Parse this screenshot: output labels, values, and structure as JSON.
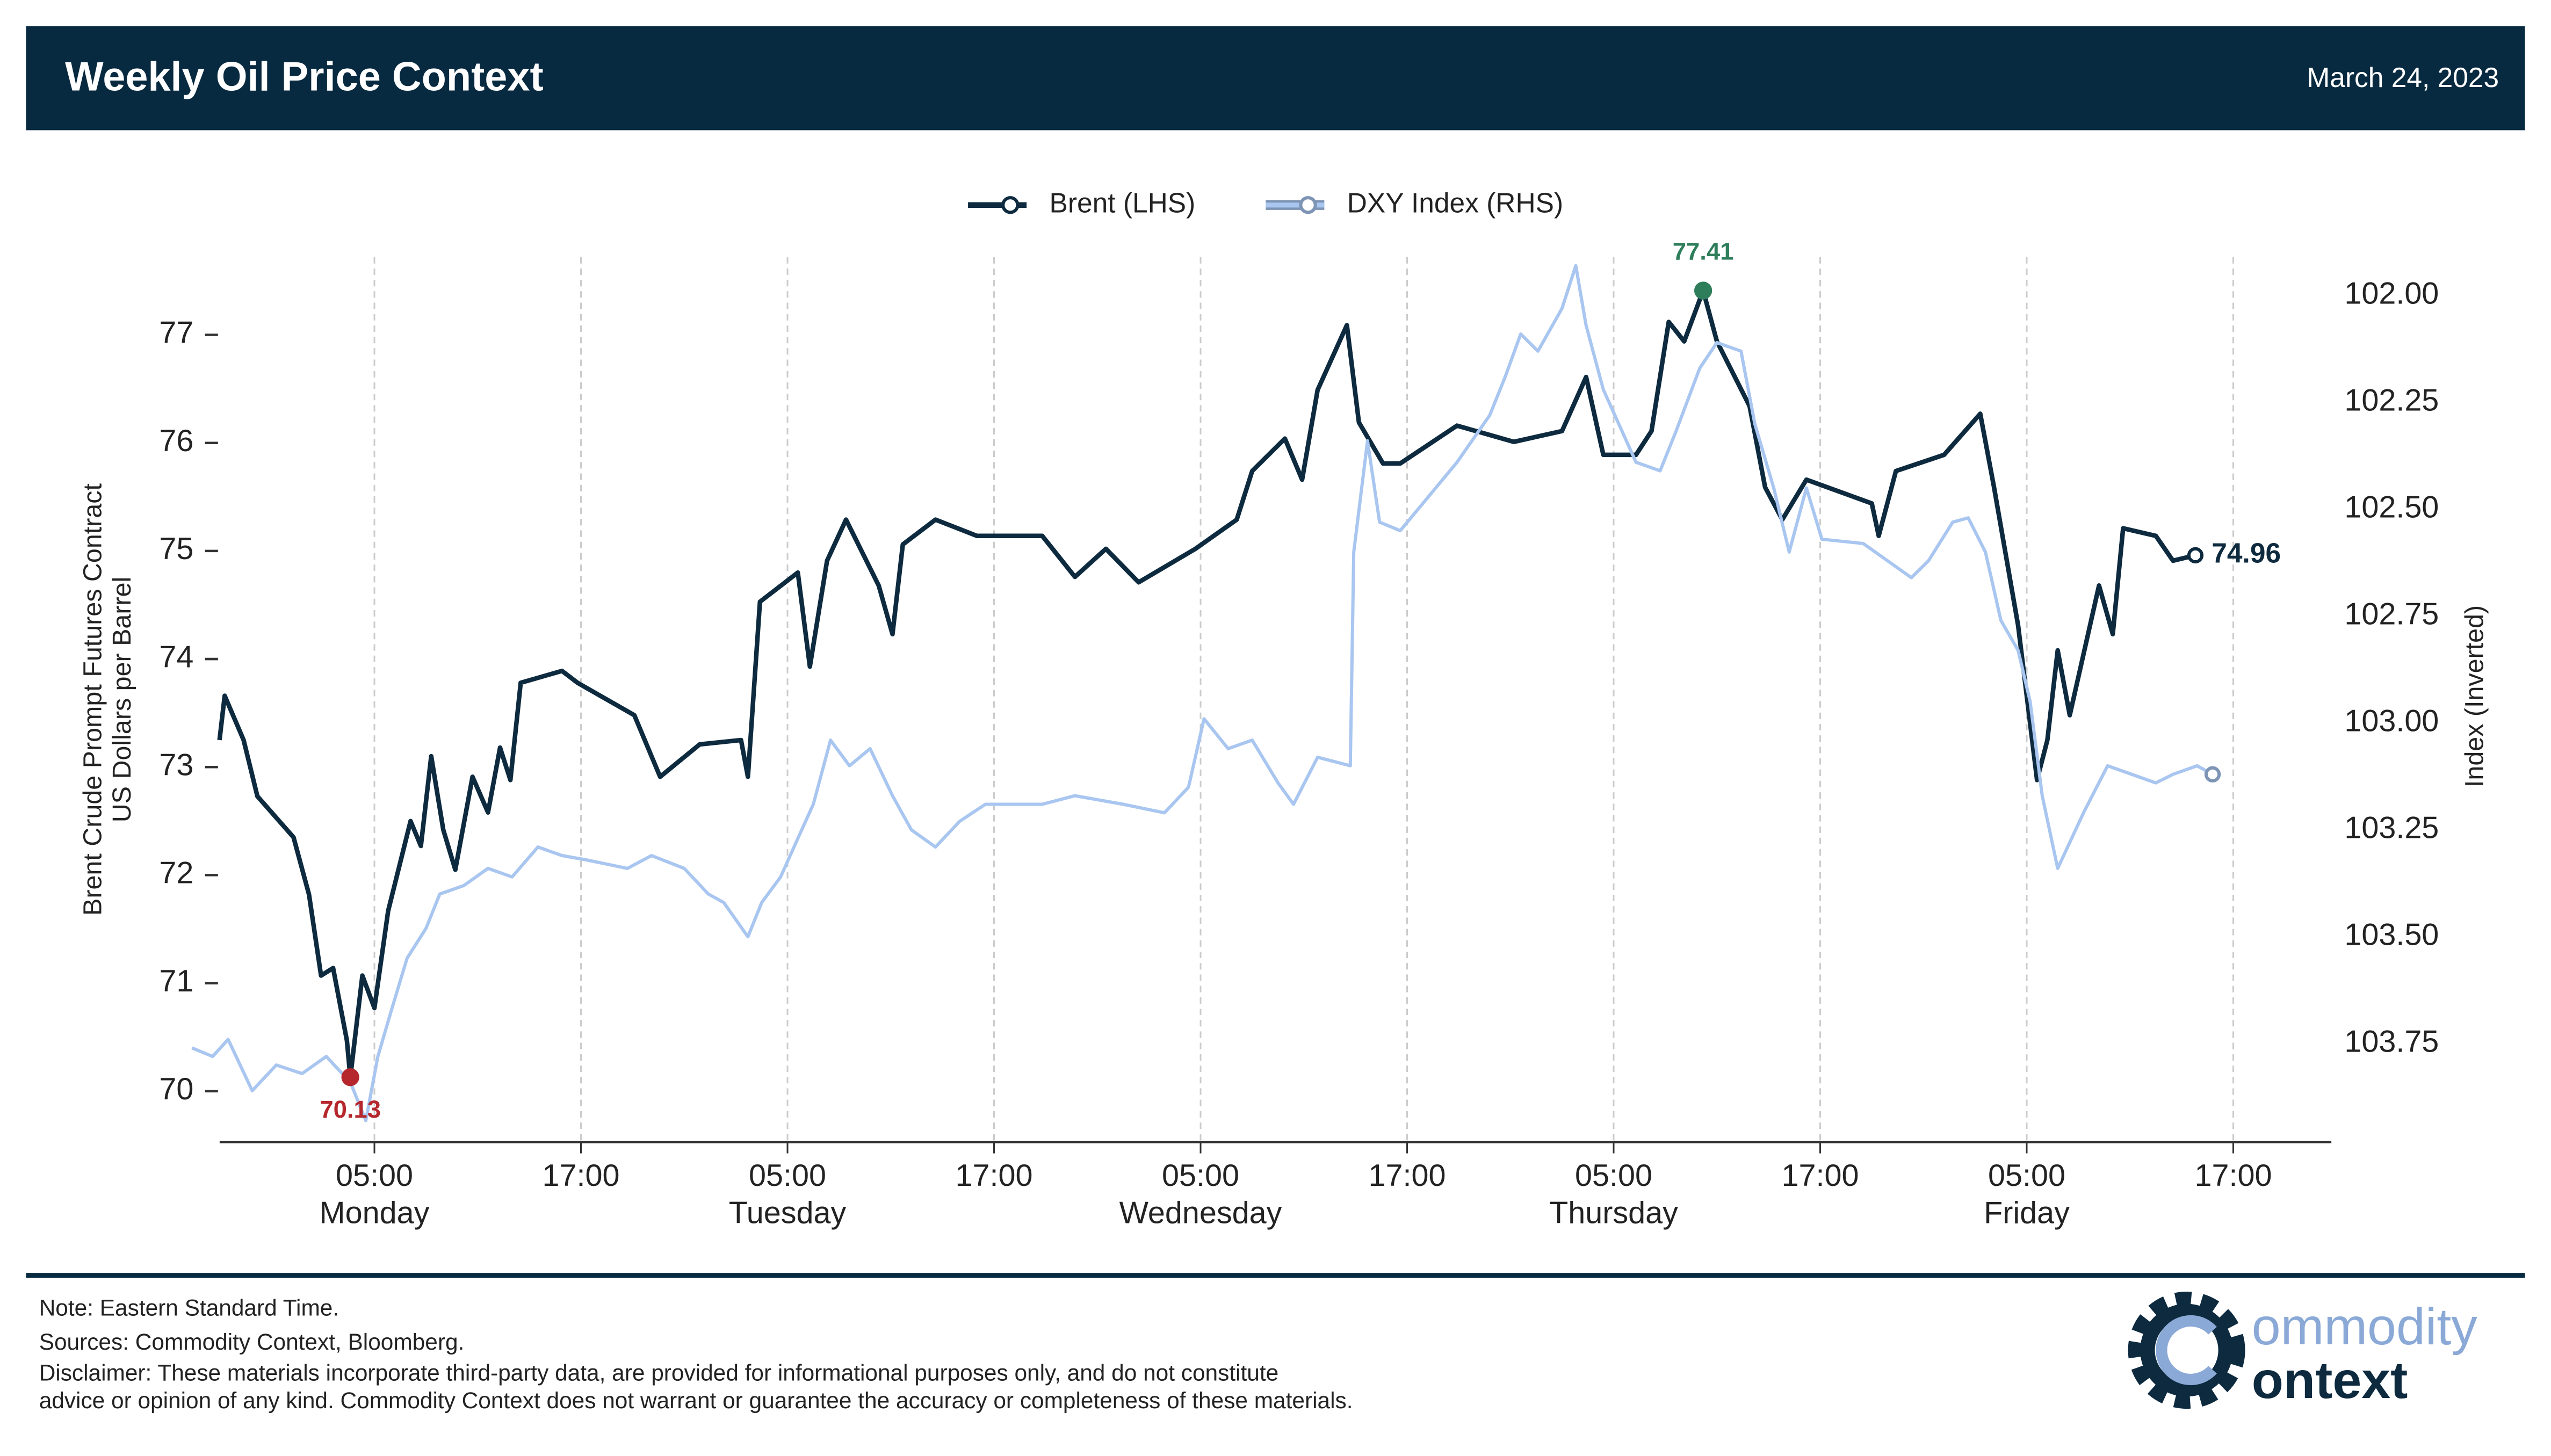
{
  "header": {
    "title": "Weekly Oil Price Context",
    "date": "March 24, 2023"
  },
  "chart_data": {
    "type": "line",
    "ylabel": [
      "Brent Crude Prompt Futures Contract",
      "US Dollars per Barrel"
    ],
    "y2label": "Index (Inverted)",
    "xlim": [
      -5.6,
      118.7
    ],
    "xticks": [
      {
        "value": 5,
        "label": "05:00\nMonday"
      },
      {
        "value": 17,
        "label": "17:00"
      },
      {
        "value": 29,
        "label": "05:00\nTuesday"
      },
      {
        "value": 41,
        "label": "17:00"
      },
      {
        "value": 53,
        "label": "05:00\nWednesday"
      },
      {
        "value": 65,
        "label": "17:00"
      },
      {
        "value": 77,
        "label": "05:00\nThursday"
      },
      {
        "value": 89,
        "label": "17:00"
      },
      {
        "value": 101,
        "label": "05:00\nFriday"
      },
      {
        "value": 113,
        "label": "17:00"
      }
    ],
    "xgrid": true,
    "ylim": [
      69.53,
      77.72
    ],
    "yticks": [
      70,
      71,
      72,
      73,
      74,
      75,
      76,
      77
    ],
    "y2lim": [
      103.98,
      101.91
    ],
    "y2ticks": [
      {
        "value": 102,
        "label": "102.00"
      },
      102.25,
      {
        "value": 102.5,
        "label": "102.50"
      },
      102.75,
      {
        "value": 103,
        "label": "103.00"
      },
      103.25,
      {
        "value": 103.5,
        "label": "103.50"
      },
      103.75
    ],
    "legend": "top",
    "series": [
      {
        "name": "Brent (LHS)",
        "color": "#0d2a3f",
        "axis": "y",
        "end_label": true,
        "x": [
          -4.0,
          -3.7,
          -2.6,
          -1.8,
          0.3,
          1.2,
          1.9,
          2.6,
          3.4,
          3.6,
          4.3,
          5.0,
          5.8,
          7.1,
          7.7,
          8.3,
          9.0,
          9.7,
          10.7,
          11.6,
          12.3,
          12.9,
          13.5,
          15.9,
          16.8,
          20.1,
          21.6,
          23.9,
          26.3,
          26.7,
          27.4,
          29.6,
          30.3,
          31.3,
          32.4,
          34.3,
          35.1,
          35.7,
          37.6,
          40.0,
          43.8,
          45.7,
          47.5,
          49.4,
          52.7,
          55.1,
          56.0,
          57.9,
          58.9,
          59.8,
          61.5,
          62.2,
          63.6,
          64.6,
          67.9,
          71.2,
          74.0,
          75.4,
          76.4,
          78.3,
          79.2,
          80.2,
          81.1,
          82.2,
          83.0,
          84.9,
          85.8,
          86.8,
          88.2,
          92.0,
          92.4,
          93.4,
          96.2,
          98.3,
          99.1,
          100.5,
          101.6,
          102.2,
          102.8,
          103.5,
          105.2,
          106.0,
          106.6,
          108.5,
          109.5,
          110.8
        ],
        "values": [
          73.25,
          73.66,
          73.25,
          72.73,
          72.35,
          71.82,
          71.07,
          71.14,
          70.47,
          70.13,
          71.07,
          70.77,
          71.67,
          72.5,
          72.27,
          73.1,
          72.42,
          72.05,
          72.91,
          72.58,
          73.18,
          72.88,
          73.78,
          73.89,
          73.78,
          73.48,
          72.91,
          73.21,
          73.25,
          72.91,
          74.53,
          74.8,
          73.93,
          74.91,
          75.29,
          74.68,
          74.23,
          75.06,
          75.29,
          75.14,
          75.14,
          74.76,
          75.02,
          74.71,
          75.02,
          75.29,
          75.74,
          76.04,
          75.66,
          76.49,
          77.09,
          76.19,
          75.81,
          75.81,
          76.16,
          76.01,
          76.11,
          76.61,
          75.89,
          75.89,
          76.11,
          77.12,
          76.94,
          77.41,
          76.94,
          76.34,
          75.59,
          75.29,
          75.66,
          75.44,
          75.14,
          75.74,
          75.89,
          76.27,
          75.59,
          74.31,
          72.88,
          73.25,
          74.08,
          73.48,
          74.68,
          74.23,
          75.21,
          75.14,
          74.91,
          74.96
        ]
      },
      {
        "name": "DXY Index (RHS)",
        "color": "#a9c6f0",
        "axis": "y2",
        "end_marker": true,
        "x": [
          -5.6,
          -4.4,
          -3.5,
          -2.1,
          -0.7,
          0.8,
          2.2,
          3.6,
          4.5,
          5.2,
          6.0,
          6.9,
          8.0,
          8.8,
          10.2,
          11.6,
          13.0,
          14.5,
          15.9,
          17.3,
          19.7,
          21.1,
          23.0,
          24.4,
          25.3,
          26.7,
          27.5,
          28.6,
          29.6,
          30.5,
          31.5,
          32.6,
          33.8,
          35.1,
          36.2,
          37.6,
          39.0,
          40.5,
          43.8,
          45.7,
          48.5,
          50.9,
          52.3,
          53.2,
          54.6,
          56.0,
          57.5,
          58.4,
          59.8,
          61.7,
          61.9,
          62.7,
          63.4,
          64.6,
          67.9,
          69.8,
          70.7,
          71.6,
          72.6,
          74.0,
          74.8,
          75.4,
          76.4,
          78.3,
          79.7,
          80.6,
          82.0,
          83.0,
          84.4,
          85.2,
          86.3,
          87.2,
          88.2,
          89.1,
          91.5,
          92.9,
          94.3,
          95.3,
          96.7,
          97.6,
          98.6,
          99.5,
          100.5,
          101.2,
          101.9,
          102.8,
          104.3,
          105.7,
          107.1,
          108.5,
          109.5,
          110.9,
          111.8
        ],
        "values": [
          103.76,
          103.78,
          103.74,
          103.86,
          103.8,
          103.82,
          103.78,
          103.84,
          103.93,
          103.78,
          103.67,
          103.55,
          103.48,
          103.4,
          103.38,
          103.34,
          103.36,
          103.29,
          103.31,
          103.32,
          103.34,
          103.31,
          103.34,
          103.4,
          103.42,
          103.5,
          103.42,
          103.36,
          103.27,
          103.19,
          103.04,
          103.1,
          103.06,
          103.17,
          103.25,
          103.29,
          103.23,
          103.19,
          103.19,
          103.17,
          103.19,
          103.21,
          103.15,
          102.99,
          103.06,
          103.04,
          103.14,
          103.19,
          103.08,
          103.1,
          102.6,
          102.34,
          102.53,
          102.55,
          102.39,
          102.28,
          102.19,
          102.09,
          102.13,
          102.03,
          101.93,
          102.07,
          102.22,
          102.39,
          102.41,
          102.32,
          102.17,
          102.11,
          102.13,
          102.3,
          102.45,
          102.6,
          102.45,
          102.57,
          102.58,
          102.62,
          102.66,
          102.62,
          102.53,
          102.52,
          102.6,
          102.76,
          102.83,
          102.95,
          103.17,
          103.34,
          103.21,
          103.1,
          103.12,
          103.14,
          103.12,
          103.1,
          103.12
        ]
      }
    ],
    "annotations": [
      {
        "x": 3.6,
        "value": 70.13,
        "color": "#b5272d",
        "position": "below"
      },
      {
        "x": 82.2,
        "value": 77.41,
        "color": "#2e7d5b",
        "position": "above"
      }
    ]
  },
  "footer": {
    "notes": [
      "Note: Eastern Standard Time.",
      "Sources: Commodity Context, Bloomberg.",
      "Disclaimer: These materials incorporate third-party data, are provided for informational purposes only, and do not constitute",
      "advice or opinion of any kind. Commodity Context does not warrant or guarantee the accuracy or completeness of these materials."
    ],
    "logo": [
      "ommodity",
      "ontext"
    ]
  }
}
